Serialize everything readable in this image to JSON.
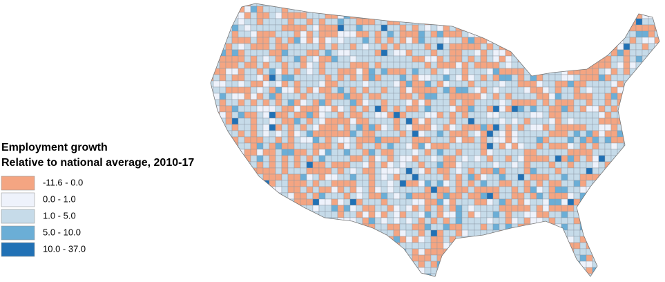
{
  "legend": {
    "title": [
      "Employment growth",
      "Relative to national average, 2010-17"
    ],
    "items": [
      {
        "label": "-11.6 - 0.0",
        "color": "#f4a582"
      },
      {
        "label": "0.0 - 1.0",
        "color": "#eef2fb"
      },
      {
        "label": "1.0 - 5.0",
        "color": "#c6dbe9"
      },
      {
        "label": "5.0 - 10.0",
        "color": "#6baed6"
      },
      {
        "label": "10.0 - 37.0",
        "color": "#2171b5"
      }
    ]
  }
}
